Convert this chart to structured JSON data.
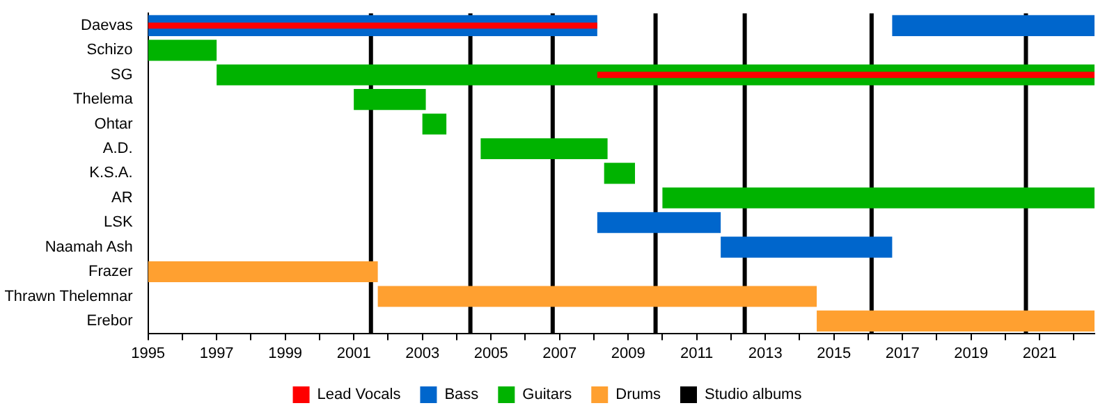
{
  "chart_data": {
    "type": "bar",
    "orientation": "horizontal",
    "categories": [
      "Daevas",
      "Schizo",
      "SG",
      "Thelema",
      "Ohtar",
      "A.D.",
      "K.S.A.",
      "AR",
      "LSK",
      "Naamah Ash",
      "Frazer",
      "Thrawn Thelemnar",
      "Erebor"
    ],
    "series": [
      {
        "name": "Lead Vocals",
        "color": "#ff0000",
        "base": [
          1995,
          null,
          2008.1,
          null,
          null,
          null,
          null,
          null,
          null,
          null,
          null,
          null,
          null
        ],
        "values": [
          13.1,
          null,
          14.5,
          null,
          null,
          null,
          null,
          null,
          null,
          null,
          null,
          null,
          null
        ]
      },
      {
        "name": "Bass",
        "color": "#0066cc",
        "base": [
          1995,
          null,
          null,
          null,
          null,
          null,
          null,
          null,
          2008.1,
          2011.7,
          null,
          null,
          null
        ],
        "values": [
          13.1,
          null,
          null,
          null,
          null,
          null,
          null,
          null,
          3.6,
          5.0,
          null,
          null,
          null
        ]
      },
      {
        "color": "#0066cc",
        "base": [
          2016.7,
          null,
          null,
          null,
          null,
          null,
          null,
          null,
          null,
          null,
          null,
          null,
          null
        ],
        "values": [
          5.9,
          null,
          null,
          null,
          null,
          null,
          null,
          null,
          null,
          null,
          null,
          null,
          null
        ]
      },
      {
        "name": "Guitars",
        "color": "#00b300",
        "base": [
          null,
          1995,
          1997.0,
          2001.0,
          2003.0,
          2004.7,
          2008.3,
          2010.0,
          null,
          null,
          null,
          null,
          null
        ],
        "values": [
          null,
          2.0,
          25.6,
          2.1,
          0.7,
          3.7,
          0.9,
          12.6,
          null,
          null,
          null,
          null,
          null
        ]
      },
      {
        "name": "Drums",
        "color": "#ffa030",
        "base": [
          null,
          null,
          null,
          null,
          null,
          null,
          null,
          null,
          null,
          null,
          1995,
          2001.7,
          2014.5
        ],
        "values": [
          null,
          null,
          null,
          null,
          null,
          null,
          null,
          null,
          null,
          null,
          6.7,
          12.8,
          8.1
        ]
      }
    ],
    "ref_lines": [
      {
        "axis": "x",
        "value": 2001.5,
        "label": "Studio albums",
        "color": "#000000"
      },
      {
        "axis": "x",
        "value": 2004.4,
        "color": "#000000"
      },
      {
        "axis": "x",
        "value": 2006.8,
        "color": "#000000"
      },
      {
        "axis": "x",
        "value": 2009.8,
        "color": "#000000"
      },
      {
        "axis": "x",
        "value": 2012.4,
        "color": "#000000"
      },
      {
        "axis": "x",
        "value": 2016.1,
        "color": "#000000"
      },
      {
        "axis": "x",
        "value": 2020.6,
        "color": "#000000"
      }
    ],
    "xlim": [
      1995,
      2022.6
    ],
    "xticks": [
      1995,
      {
        "value": 1996,
        "label": null
      },
      1997,
      {
        "value": 1998,
        "label": null
      },
      1999,
      {
        "value": 2000,
        "label": null
      },
      2001,
      {
        "value": 2002,
        "label": null
      },
      2003,
      {
        "value": 2004,
        "label": null
      },
      2005,
      {
        "value": 2006,
        "label": null
      },
      2007,
      {
        "value": 2008,
        "label": null
      },
      2009,
      {
        "value": 2010,
        "label": null
      },
      2011,
      {
        "value": 2012,
        "label": null
      },
      2013,
      {
        "value": 2014,
        "label": null
      },
      2015,
      {
        "value": 2016,
        "label": null
      },
      2017,
      {
        "value": 2018,
        "label": null
      },
      2019,
      {
        "value": 2020,
        "label": null
      },
      2021,
      {
        "value": 2022,
        "label": null
      }
    ],
    "legend": "bottom",
    "grid": false
  }
}
